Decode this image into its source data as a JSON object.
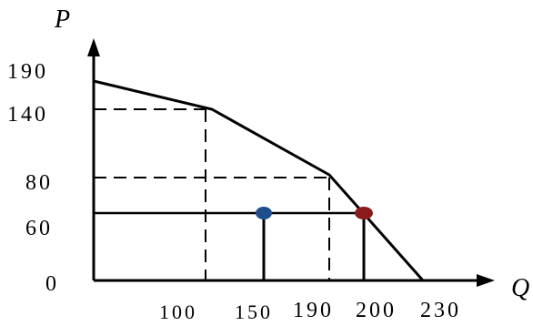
{
  "diagram": {
    "axes": {
      "y_name": "P",
      "x_name": "Q",
      "y_ticks": [
        {
          "key": "t190",
          "label": "190"
        },
        {
          "key": "t140",
          "label": "140"
        },
        {
          "key": "t80",
          "label": "80"
        },
        {
          "key": "t60",
          "label": "60"
        },
        {
          "key": "t0",
          "label": "0"
        }
      ],
      "x_ticks": [
        {
          "key": "t100",
          "label": "100"
        },
        {
          "key": "t150",
          "label": "150"
        },
        {
          "key": "t190",
          "label": "190"
        },
        {
          "key": "t200",
          "label": "200"
        },
        {
          "key": "t230",
          "label": "230"
        }
      ]
    },
    "markers": [
      {
        "name": "blue-point",
        "color": "#1f4e8c"
      },
      {
        "name": "red-point",
        "color": "#8b1a1a"
      }
    ]
  }
}
